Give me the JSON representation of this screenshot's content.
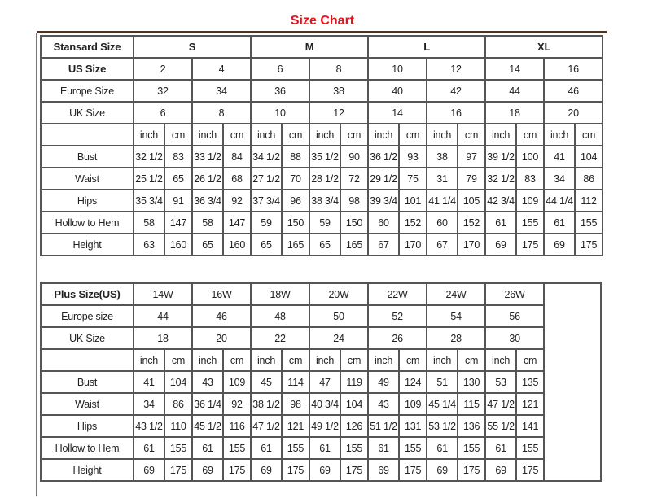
{
  "title": "Size Chart",
  "standard": {
    "header_label": "Stansard Size",
    "groups": [
      "S",
      "M",
      "L",
      "XL"
    ],
    "us_label": "US Size",
    "us": [
      "2",
      "4",
      "6",
      "8",
      "10",
      "12",
      "14",
      "16"
    ],
    "europe_label": "Europe Size",
    "europe": [
      "32",
      "34",
      "36",
      "38",
      "40",
      "42",
      "44",
      "46"
    ],
    "uk_label": "UK Size",
    "uk": [
      "6",
      "8",
      "10",
      "12",
      "14",
      "16",
      "18",
      "20"
    ],
    "unit_inch": "inch",
    "unit_cm": "cm",
    "measurements": [
      {
        "label": "Bust",
        "values": [
          "32 1/2",
          "83",
          "33 1/2",
          "84",
          "34 1/2",
          "88",
          "35 1/2",
          "90",
          "36 1/2",
          "93",
          "38",
          "97",
          "39 1/2",
          "100",
          "41",
          "104"
        ]
      },
      {
        "label": "Waist",
        "values": [
          "25 1/2",
          "65",
          "26 1/2",
          "68",
          "27 1/2",
          "70",
          "28 1/2",
          "72",
          "29 1/2",
          "75",
          "31",
          "79",
          "32 1/2",
          "83",
          "34",
          "86"
        ]
      },
      {
        "label": "Hips",
        "values": [
          "35 3/4",
          "91",
          "36 3/4",
          "92",
          "37 3/4",
          "96",
          "38 3/4",
          "98",
          "39 3/4",
          "101",
          "41 1/4",
          "105",
          "42 3/4",
          "109",
          "44 1/4",
          "112"
        ]
      },
      {
        "label": "Hollow to Hem",
        "values": [
          "58",
          "147",
          "58",
          "147",
          "59",
          "150",
          "59",
          "150",
          "60",
          "152",
          "60",
          "152",
          "61",
          "155",
          "61",
          "155"
        ]
      },
      {
        "label": "Height",
        "values": [
          "63",
          "160",
          "65",
          "160",
          "65",
          "165",
          "65",
          "165",
          "67",
          "170",
          "67",
          "170",
          "69",
          "175",
          "69",
          "175"
        ]
      }
    ]
  },
  "plus": {
    "header_label": "Plus Size(US)",
    "us": [
      "14W",
      "16W",
      "18W",
      "20W",
      "22W",
      "24W",
      "26W"
    ],
    "europe_label": "Europe size",
    "europe": [
      "44",
      "46",
      "48",
      "50",
      "52",
      "54",
      "56"
    ],
    "uk_label": "UK Size",
    "uk": [
      "18",
      "20",
      "22",
      "24",
      "26",
      "28",
      "30"
    ],
    "unit_inch": "inch",
    "unit_cm": "cm",
    "measurements": [
      {
        "label": "Bust",
        "values": [
          "41",
          "104",
          "43",
          "109",
          "45",
          "114",
          "47",
          "119",
          "49",
          "124",
          "51",
          "130",
          "53",
          "135"
        ]
      },
      {
        "label": "Waist",
        "values": [
          "34",
          "86",
          "36 1/4",
          "92",
          "38 1/2",
          "98",
          "40 3/4",
          "104",
          "43",
          "109",
          "45 1/4",
          "115",
          "47 1/2",
          "121"
        ]
      },
      {
        "label": "Hips",
        "values": [
          "43 1/2",
          "110",
          "45 1/2",
          "116",
          "47 1/2",
          "121",
          "49 1/2",
          "126",
          "51 1/2",
          "131",
          "53 1/2",
          "136",
          "55 1/2",
          "141"
        ]
      },
      {
        "label": "Hollow to Hem",
        "values": [
          "61",
          "155",
          "61",
          "155",
          "61",
          "155",
          "61",
          "155",
          "61",
          "155",
          "61",
          "155",
          "61",
          "155"
        ]
      },
      {
        "label": "Height",
        "values": [
          "69",
          "175",
          "69",
          "175",
          "69",
          "175",
          "69",
          "175",
          "69",
          "175",
          "69",
          "175",
          "69",
          "175"
        ]
      }
    ]
  }
}
